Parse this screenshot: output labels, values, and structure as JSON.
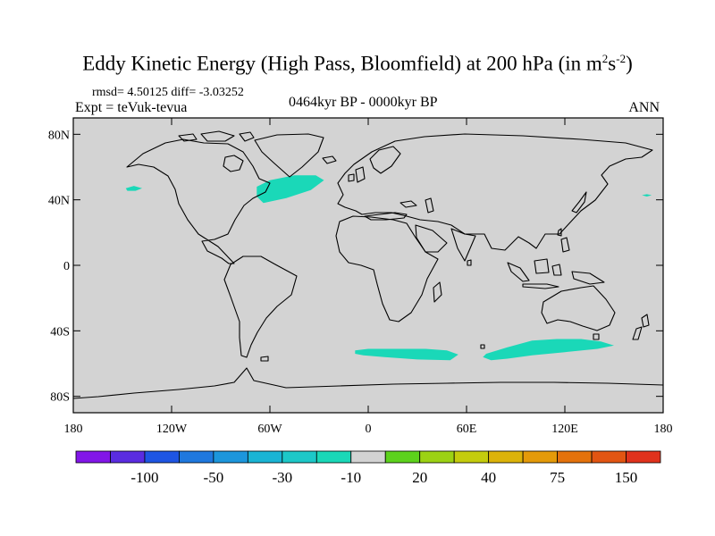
{
  "title": {
    "main": "Eddy Kinetic Energy (High Pass, Bloomfield) at 200 hPa (in m",
    "sup1": "2",
    "s": "s",
    "sup2": "-2",
    "close": ")"
  },
  "stats": "rmsd= 4.50125 diff= -3.03252",
  "experiment": "Expt = teVuk-tevua",
  "period": "0464kyr BP - 0000kyr BP",
  "season": "ANN",
  "map": {
    "projection": "cylindrical-equidistant",
    "land_color": "#d3d3d3",
    "coastline_color": "#000000",
    "lon_range": [
      -180,
      180
    ],
    "lat_range": [
      -90,
      90
    ],
    "lon_ticks": [
      {
        "value": -180,
        "label": "180"
      },
      {
        "value": -120,
        "label": "120W"
      },
      {
        "value": -60,
        "label": "60W"
      },
      {
        "value": 0,
        "label": "0"
      },
      {
        "value": 60,
        "label": "60E"
      },
      {
        "value": 120,
        "label": "120E"
      },
      {
        "value": 180,
        "label": "180"
      }
    ],
    "lat_ticks": [
      {
        "value": 80,
        "label": "80N"
      },
      {
        "value": 40,
        "label": "40N"
      },
      {
        "value": 0,
        "label": "0"
      },
      {
        "value": -40,
        "label": "40S"
      },
      {
        "value": -80,
        "label": "80S"
      }
    ],
    "anomaly_regions": [
      {
        "name": "north-atlantic",
        "color": "#1ad8b8",
        "points": [
          [
            -68,
            48
          ],
          [
            -60,
            52
          ],
          [
            -45,
            55
          ],
          [
            -32,
            55
          ],
          [
            -27,
            52
          ],
          [
            -35,
            46
          ],
          [
            -50,
            41
          ],
          [
            -64,
            38
          ],
          [
            -68,
            42
          ]
        ]
      },
      {
        "name": "north-pacific-west",
        "color": "#1ad8b8",
        "points": [
          [
            -148,
            47
          ],
          [
            -143,
            48.5
          ],
          [
            -138,
            47
          ],
          [
            -142,
            45.5
          ],
          [
            -147,
            45.5
          ]
        ]
      },
      {
        "name": "north-pacific-east",
        "color": "#1ad8b8",
        "points": [
          [
            167,
            42.8
          ],
          [
            170,
            43.4
          ],
          [
            173,
            42.8
          ],
          [
            170,
            42
          ]
        ]
      },
      {
        "name": "south-atlantic-indian",
        "color": "#1ad8b8",
        "points": [
          [
            -8,
            -52
          ],
          [
            0,
            -51
          ],
          [
            15,
            -51
          ],
          [
            35,
            -51
          ],
          [
            48,
            -52
          ],
          [
            55,
            -54.5
          ],
          [
            50,
            -58
          ],
          [
            30,
            -57.5
          ],
          [
            10,
            -56
          ],
          [
            -3,
            -55
          ],
          [
            -8,
            -54
          ]
        ]
      },
      {
        "name": "south-indian",
        "color": "#1ad8b8",
        "points": [
          [
            72,
            -54
          ],
          [
            85,
            -50
          ],
          [
            100,
            -46
          ],
          [
            115,
            -45
          ],
          [
            130,
            -45
          ],
          [
            142,
            -46.5
          ],
          [
            150,
            -49
          ],
          [
            140,
            -51
          ],
          [
            120,
            -53
          ],
          [
            100,
            -55
          ],
          [
            85,
            -57
          ],
          [
            75,
            -58
          ],
          [
            70,
            -56
          ]
        ]
      }
    ]
  },
  "colorbar": {
    "colors": [
      "#8216e8",
      "#5a2ce0",
      "#1e55e3",
      "#1f78de",
      "#1c96dc",
      "#1ab4d4",
      "#1dc8c8",
      "#1ad8b8",
      "#d3d3d3",
      "#5cd21c",
      "#9cd214",
      "#c4cc0d",
      "#dcb30a",
      "#e49a09",
      "#e4720c",
      "#e25512",
      "#e0321c"
    ],
    "labels": [
      {
        "after_box": 2,
        "text": "-100"
      },
      {
        "after_box": 4,
        "text": "-50"
      },
      {
        "after_box": 6,
        "text": "-30"
      },
      {
        "after_box": 8,
        "text": "-10"
      },
      {
        "after_box": 10,
        "text": "20"
      },
      {
        "after_box": 12,
        "text": "40"
      },
      {
        "after_box": 14,
        "text": "75"
      },
      {
        "after_box": 16,
        "text": "150"
      }
    ]
  }
}
